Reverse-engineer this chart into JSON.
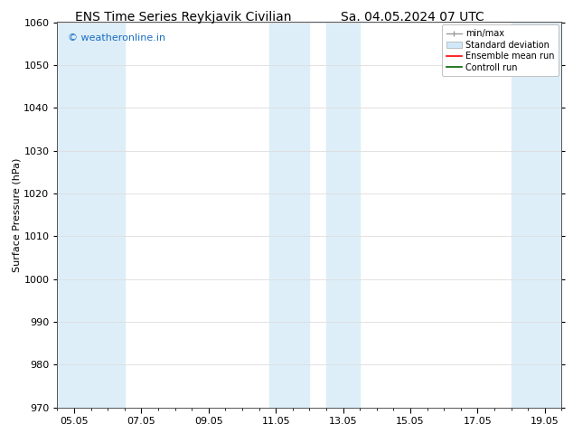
{
  "title_left": "ENS Time Series Reykjavik Civilian",
  "title_right": "Sa. 04.05.2024 07 UTC",
  "ylabel": "Surface Pressure (hPa)",
  "ylim": [
    970,
    1060
  ],
  "yticks": [
    970,
    980,
    990,
    1000,
    1010,
    1020,
    1030,
    1040,
    1050,
    1060
  ],
  "xlim_start": -0.5,
  "xlim_end": 14.5,
  "xtick_labels": [
    "05.05",
    "07.05",
    "09.05",
    "11.05",
    "13.05",
    "15.05",
    "17.05",
    "19.05"
  ],
  "xtick_positions": [
    0,
    2,
    4,
    6,
    8,
    10,
    12,
    14
  ],
  "shaded_bands": [
    {
      "x_start": -0.5,
      "x_end": 1.0,
      "color": "#ddeef8"
    },
    {
      "x_start": 1.5,
      "x_end": 2.0,
      "color": "#ddeef8"
    },
    {
      "x_start": 5.8,
      "x_end": 7.2,
      "color": "#ddeef8"
    },
    {
      "x_start": 7.8,
      "x_end": 8.5,
      "color": "#ddeef8"
    },
    {
      "x_start": 13.0,
      "x_end": 14.5,
      "color": "#ddeef8"
    }
  ],
  "watermark": "© weatheronline.in",
  "watermark_color": "#1a6ec2",
  "bg_color": "#ffffff",
  "plot_bg_color": "#ffffff",
  "grid_color": "#dddddd",
  "title_fontsize": 10,
  "axis_label_fontsize": 8,
  "tick_fontsize": 8,
  "legend_fontsize": 7
}
